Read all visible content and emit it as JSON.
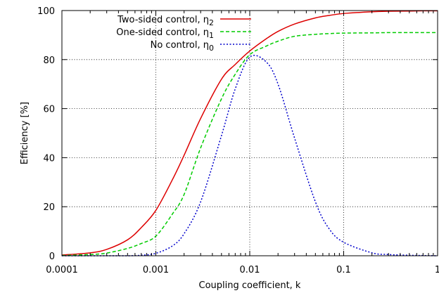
{
  "chart_data": {
    "type": "line",
    "title": "",
    "xlabel": "Coupling coefficient, k",
    "ylabel": "Efficiency [%]",
    "xscale": "log",
    "xlim": [
      0.0001,
      1
    ],
    "ylim": [
      0,
      100
    ],
    "grid": true,
    "legend_position": "top-left",
    "xticks": [
      0.0001,
      0.001,
      0.01,
      0.1,
      1
    ],
    "xtick_labels": [
      "0.0001",
      "0.001",
      "0.01",
      "0.1",
      "1"
    ],
    "yticks": [
      0,
      20,
      40,
      60,
      80,
      100
    ],
    "ytick_labels": [
      "0",
      "20",
      "40",
      "60",
      "80",
      "100"
    ],
    "x": [
      0.0001,
      0.0002,
      0.0003,
      0.0005,
      0.0007,
      0.001,
      0.0015,
      0.002,
      0.003,
      0.005,
      0.007,
      0.01,
      0.015,
      0.02,
      0.03,
      0.05,
      0.07,
      0.1,
      0.2,
      0.3,
      0.5,
      0.7,
      1
    ],
    "series": [
      {
        "name": "Two-sided control, η",
        "subscript": "2",
        "color": "#dd0000",
        "dash": "solid",
        "values": [
          0.3,
          1.2,
          2.6,
          6.5,
          11.5,
          18.5,
          31,
          41,
          56,
          72,
          78,
          83.5,
          88.5,
          91.5,
          94.5,
          97,
          98,
          98.8,
          99.5,
          99.7,
          99.8,
          99.9,
          99.9
        ]
      },
      {
        "name": "One-sided control, η",
        "subscript": "1",
        "color": "#00cc00",
        "dash": "dashed",
        "values": [
          0.1,
          0.5,
          1.1,
          3,
          5,
          8,
          17,
          25,
          44,
          64,
          74,
          82,
          85.5,
          87.5,
          89.5,
          90.3,
          90.6,
          90.8,
          90.9,
          91,
          91,
          91,
          91
        ]
      },
      {
        "name": "No control, η",
        "subscript": "0",
        "color": "#0000cc",
        "dash": "dotted",
        "values": [
          0,
          0,
          0,
          0,
          0.2,
          1,
          4,
          9,
          22,
          49,
          68,
          81,
          79,
          70,
          48,
          22,
          11,
          5.5,
          1.2,
          0.5,
          0.2,
          0.1,
          0
        ]
      }
    ]
  }
}
